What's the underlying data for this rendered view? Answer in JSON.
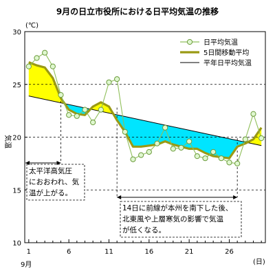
{
  "chart_data": {
    "type": "line",
    "title": "9月の日立市役所における日平均気温の推移",
    "ylabel": "気温",
    "yunit": "(℃)",
    "xunit": "(日)",
    "xmonth": "9月",
    "ylim": [
      10,
      30
    ],
    "xlim": [
      1,
      30
    ],
    "yticks": [
      10,
      15,
      20,
      25,
      30
    ],
    "xticks": [
      1,
      6,
      11,
      16,
      21,
      26
    ],
    "grid": "dashed at 15, 20, 25",
    "legend_position": "top-right",
    "series": [
      {
        "name": "日平均気温",
        "color": "#6a9a3a",
        "marker": "circle",
        "x": [
          1,
          2,
          3,
          4,
          5,
          6,
          7,
          8,
          9,
          10,
          11,
          12,
          13,
          14,
          15,
          16,
          17,
          18,
          19,
          20,
          21,
          22,
          23,
          24,
          25,
          26,
          27,
          28,
          29,
          30
        ],
        "values": [
          26.7,
          27.5,
          28.0,
          26.7,
          24.0,
          22.1,
          22.0,
          22.6,
          21.4,
          22.6,
          25.2,
          25.5,
          20.5,
          17.9,
          18.3,
          18.6,
          19.4,
          20.9,
          18.9,
          19.0,
          19.6,
          18.2,
          18.0,
          18.6,
          18.0,
          17.6,
          17.5,
          19.8,
          22.2,
          19.9
        ]
      },
      {
        "name": "5日間移動平均",
        "color": "#9a9a14",
        "x": [
          1,
          2,
          3,
          4,
          5,
          6,
          7,
          8,
          9,
          10,
          11,
          12,
          13,
          14,
          15,
          16,
          17,
          18,
          19,
          20,
          21,
          22,
          23,
          24,
          25,
          26,
          27,
          28,
          29,
          30
        ],
        "values": [
          27.1,
          26.8,
          26.6,
          25.6,
          23.7,
          22.6,
          22.2,
          22.1,
          22.9,
          23.3,
          22.9,
          21.6,
          20.5,
          19.1,
          19.1,
          19.2,
          19.3,
          19.6,
          19.3,
          19.1,
          18.9,
          18.9,
          18.5,
          18.2,
          18.1,
          18.0,
          19.1,
          19.4,
          19.8,
          20.9
        ]
      },
      {
        "name": "平年日平均気温",
        "color": "#000000",
        "x": [
          1,
          30
        ],
        "values": [
          23.9,
          19.2
        ]
      }
    ],
    "fill_above_normal_color": "#ffff00",
    "fill_below_normal_color": "#00e5ff",
    "annotations": [
      {
        "lines": [
          "太平洋高気圧",
          "におおわれ、気",
          "温が上がる。"
        ],
        "x_range": [
          1,
          5
        ]
      },
      {
        "lines": [
          "14日に前線が本州を南下した後、",
          "北東風や上層寒気の影響で気温",
          "が低くなる。"
        ],
        "x_range": [
          12,
          27
        ]
      }
    ]
  }
}
